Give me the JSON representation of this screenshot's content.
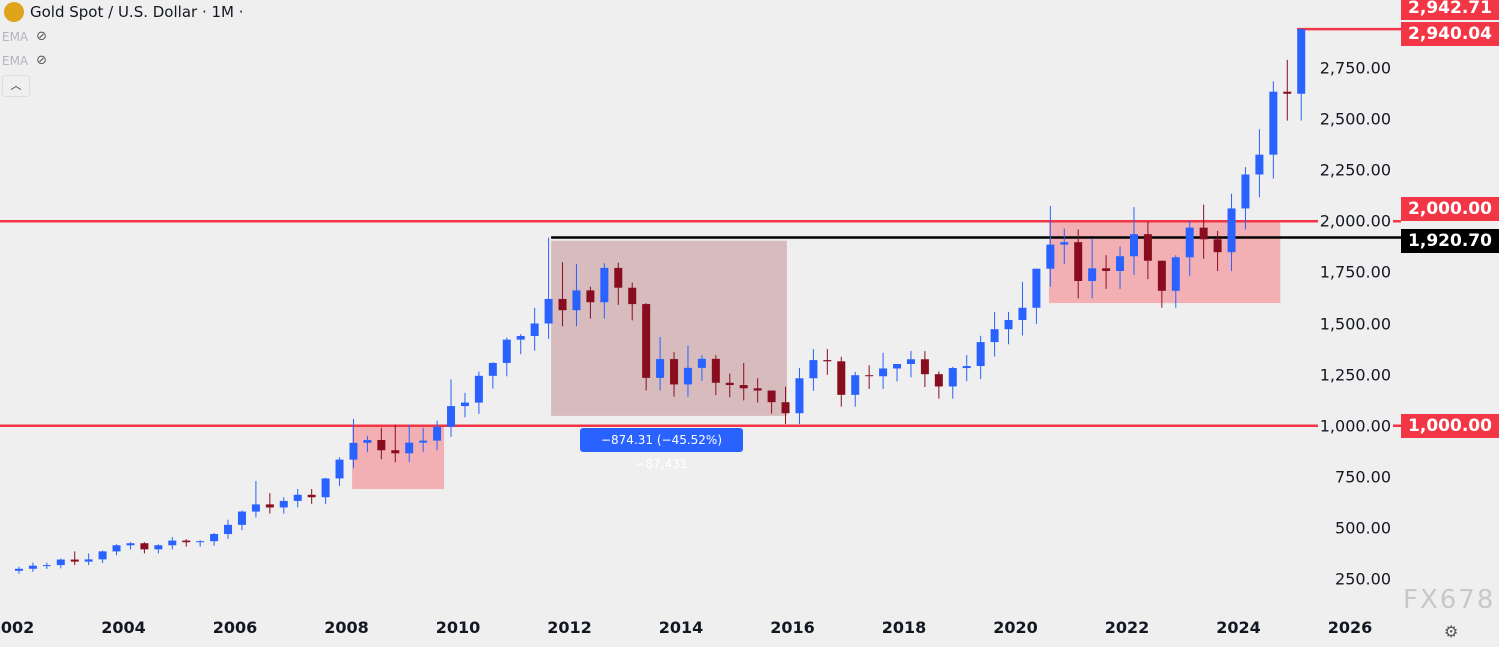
{
  "header": {
    "title": "Gold Spot / U.S. Dollar · 1M ·",
    "indicators": [
      {
        "label": "EMA",
        "icon": "eye-off-icon"
      },
      {
        "label": "EMA",
        "icon": "eye-off-icon"
      }
    ],
    "collapse_icon": "chevron-up-icon"
  },
  "chart_data": {
    "type": "candlestick",
    "interval": "1M",
    "period_note": "closes approximated per quarter",
    "x": [
      "2002Q1",
      "2002Q2",
      "2002Q3",
      "2002Q4",
      "2003Q1",
      "2003Q2",
      "2003Q3",
      "2003Q4",
      "2004Q1",
      "2004Q2",
      "2004Q3",
      "2004Q4",
      "2005Q1",
      "2005Q2",
      "2005Q3",
      "2005Q4",
      "2006Q1",
      "2006Q2",
      "2006Q3",
      "2006Q4",
      "2007Q1",
      "2007Q2",
      "2007Q3",
      "2007Q4",
      "2008Q1",
      "2008Q2",
      "2008Q3",
      "2008Q4",
      "2009Q1",
      "2009Q2",
      "2009Q3",
      "2009Q4",
      "2010Q1",
      "2010Q2",
      "2010Q3",
      "2010Q4",
      "2011Q1",
      "2011Q2",
      "2011Q3",
      "2011Q4",
      "2012Q1",
      "2012Q2",
      "2012Q3",
      "2012Q4",
      "2013Q1",
      "2013Q2",
      "2013Q3",
      "2013Q4",
      "2014Q1",
      "2014Q2",
      "2014Q3",
      "2014Q4",
      "2015Q1",
      "2015Q2",
      "2015Q3",
      "2015Q4",
      "2016Q1",
      "2016Q2",
      "2016Q3",
      "2016Q4",
      "2017Q1",
      "2017Q2",
      "2017Q3",
      "2017Q4",
      "2018Q1",
      "2018Q2",
      "2018Q3",
      "2018Q4",
      "2019Q1",
      "2019Q2",
      "2019Q3",
      "2019Q4",
      "2020Q1",
      "2020Q2",
      "2020Q3",
      "2020Q4",
      "2021Q1",
      "2021Q2",
      "2021Q3",
      "2021Q4",
      "2022Q1",
      "2022Q2",
      "2022Q3",
      "2022Q4",
      "2023Q1",
      "2023Q2",
      "2023Q3",
      "2023Q4",
      "2024Q1",
      "2024Q2",
      "2024Q3",
      "2024Q4",
      "2025Q1"
    ],
    "close": [
      300,
      315,
      318,
      345,
      335,
      346,
      385,
      415,
      425,
      395,
      415,
      438,
      430,
      435,
      470,
      515,
      580,
      615,
      600,
      632,
      662,
      650,
      742,
      834,
      916,
      930,
      880,
      865,
      917,
      927,
      995,
      1096,
      1113,
      1244,
      1307,
      1421,
      1439,
      1500,
      1620,
      1565,
      1662,
      1604,
      1772,
      1675,
      1595,
      1234,
      1326,
      1202,
      1283,
      1327,
      1210,
      1199,
      1183,
      1172,
      1115,
      1061,
      1232,
      1321,
      1315,
      1151,
      1247,
      1242,
      1280,
      1302,
      1325,
      1252,
      1192,
      1282,
      1292,
      1409,
      1472,
      1517,
      1577,
      1768,
      1886,
      1898,
      1708,
      1770,
      1757,
      1829,
      1937,
      1807,
      1660,
      1824,
      1969,
      1912,
      1849,
      2063,
      2229,
      2326,
      2634,
      2624,
      2940
    ],
    "high": [
      310,
      330,
      330,
      350,
      385,
      375,
      390,
      420,
      430,
      430,
      420,
      455,
      445,
      440,
      475,
      540,
      585,
      730,
      670,
      650,
      690,
      690,
      745,
      845,
      1033,
      950,
      990,
      1005,
      1005,
      990,
      1025,
      1226,
      1161,
      1265,
      1310,
      1431,
      1448,
      1577,
      1920,
      1800,
      1791,
      1680,
      1795,
      1798,
      1700,
      1600,
      1434,
      1360,
      1392,
      1345,
      1345,
      1255,
      1307,
      1232,
      1170,
      1191,
      1283,
      1375,
      1375,
      1337,
      1263,
      1296,
      1357,
      1300,
      1366,
      1365,
      1265,
      1288,
      1346,
      1440,
      1557,
      1557,
      1704,
      1765,
      2075,
      1965,
      1960,
      1917,
      1834,
      1877,
      2070,
      1998,
      1808,
      1834,
      2003,
      2082,
      1953,
      2135,
      2265,
      2450,
      2685,
      2790,
      2942.71
    ],
    "ylim": [
      150,
      3050
    ],
    "y_ticks": [
      250,
      500,
      750,
      1000,
      1250,
      1500,
      1750,
      2000,
      2250,
      2500,
      2750
    ],
    "x_ticks": [
      "2002",
      "2004",
      "2006",
      "2008",
      "2010",
      "2012",
      "2014",
      "2016",
      "2018",
      "2020",
      "2022",
      "2024",
      "2026"
    ],
    "colors": {
      "up": "#2962ff",
      "down": "#880e1f",
      "resistance": "#f23645",
      "level": "#000000"
    },
    "price_tags": [
      {
        "label": "2,942.71",
        "value": 2942.71,
        "color": "#f23645"
      },
      {
        "label": "2,940.04",
        "value": 2940.04,
        "color": "#f23645"
      },
      {
        "label": "2,000.00",
        "value": 2000,
        "color": "#f23645"
      },
      {
        "label": "1,920.70",
        "value": 1920.7,
        "color": "#000000"
      },
      {
        "label": "1,000.00",
        "value": 1000,
        "color": "#f23645"
      }
    ],
    "y_labels": [
      "250.00",
      "500.00",
      "750.00",
      "1,000.00",
      "1,250.00",
      "1,500.00",
      "1,750.00",
      "2,000.00",
      "2,250.00",
      "2,500.00",
      "2,750.00"
    ],
    "hlines": [
      {
        "value": 2000,
        "color": "#f23645"
      },
      {
        "value": 1000,
        "color": "#f23645"
      },
      {
        "value": 1920.7,
        "color": "#000000",
        "from": 2011.67
      },
      {
        "value": 2940.04,
        "color": "#f23645",
        "from": 2025.05
      }
    ],
    "rects": [
      {
        "x0": 2008.1,
        "x1": 2009.75,
        "y0": 690,
        "y1": 1000,
        "color": "#f2a8ae"
      },
      {
        "x0": 2011.67,
        "x1": 2015.9,
        "y0": 1048,
        "y1": 1905,
        "color": "#d4b5b7"
      },
      {
        "x0": 2020.6,
        "x1": 2024.75,
        "y0": 1600,
        "y1": 2000,
        "color": "#f2a8ae"
      }
    ],
    "measure_label": "−874.31 (−45.52%) −87,431"
  },
  "watermark": "FX678",
  "settings_icon": "gear-icon"
}
